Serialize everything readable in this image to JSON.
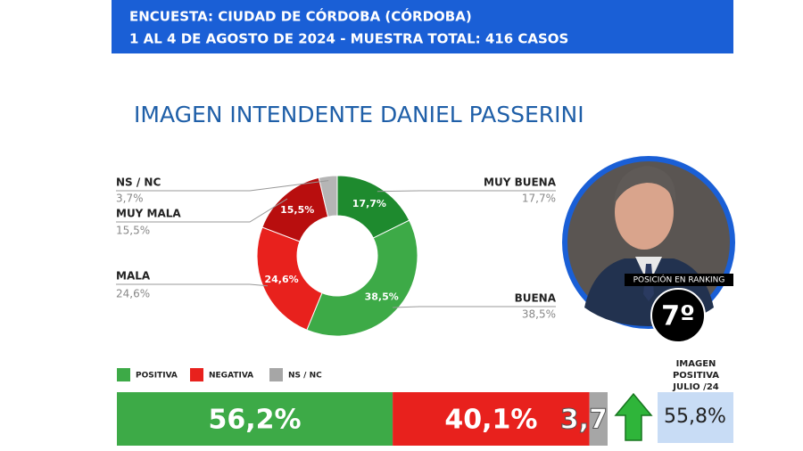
{
  "header": {
    "line1": "ENCUESTA: CIUDAD DE CÓRDOBA (CÓRDOBA)",
    "line2": "1 AL 4 DE AGOSTO DE 2024 - MUESTRA TOTAL: 416 CASOS"
  },
  "chart_data": [
    {
      "type": "donut",
      "title": "IMAGEN INTENDENTE DANIEL PASSERINI",
      "categories": [
        "MUY BUENA",
        "BUENA",
        "MALA",
        "MUY MALA",
        "NS / NC"
      ],
      "values": [
        17.7,
        38.5,
        24.6,
        15.5,
        3.7
      ],
      "value_labels": [
        "17,7%",
        "38,5%",
        "24,6%",
        "15,5%",
        "3,7%"
      ],
      "colors": [
        "#1e8a2e",
        "#3daa47",
        "#e8211d",
        "#b80e0e",
        "#b5b5b5"
      ]
    },
    {
      "type": "stacked-bar",
      "series": [
        {
          "name": "POSITIVA",
          "color": "#3daa47",
          "values": [
            56.2
          ],
          "value_labels": [
            "56,2%"
          ]
        },
        {
          "name": "NEGATIVA",
          "color": "#e8211d",
          "values": [
            40.1
          ],
          "value_labels": [
            "40,1%"
          ]
        },
        {
          "name": "NS / NC",
          "color": "#a6a6a6",
          "values": [
            3.7
          ],
          "value_labels": [
            "3,7"
          ]
        }
      ]
    }
  ],
  "ranking": {
    "label": "POSICIÓN EN RANKING",
    "value": "7º"
  },
  "previous": {
    "label": [
      "IMAGEN",
      "POSITIVA",
      "JULIO /24"
    ],
    "value": "55,8%"
  }
}
